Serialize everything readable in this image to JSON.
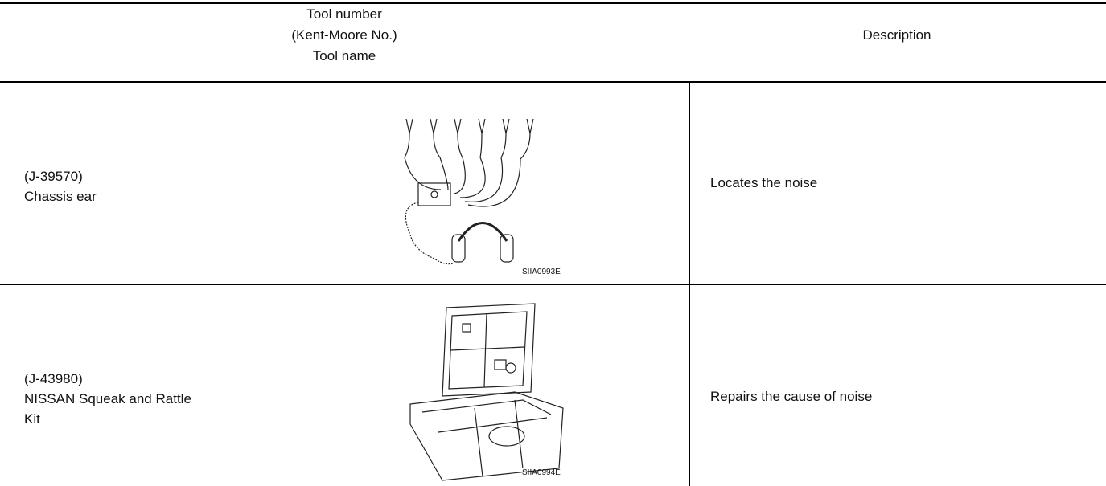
{
  "header": {
    "tool": [
      "Tool number",
      "(Kent-Moore No.)",
      "Tool name"
    ],
    "description": "Description"
  },
  "rows": [
    {
      "tool": [
        "(J-39570)",
        "Chassis ear"
      ],
      "figure": "SIIA0993E",
      "description": "Locates the noise"
    },
    {
      "tool": [
        "(J-43980)",
        "NISSAN Squeak and Rattle",
        "Kit"
      ],
      "figure": "SIIA0994E",
      "description": "Repairs the cause of noise"
    }
  ]
}
